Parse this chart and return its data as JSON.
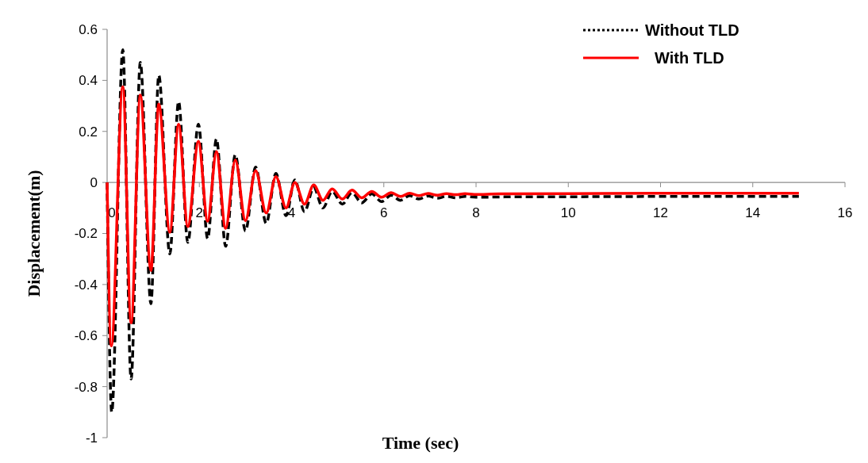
{
  "chart_data": {
    "type": "line",
    "xlabel": "Time (sec)",
    "ylabel": "Displacement(m)",
    "xlim": [
      0,
      16
    ],
    "xticks": [
      0,
      2,
      4,
      6,
      8,
      10,
      12,
      14,
      16
    ],
    "ylim": [
      -1,
      0.6
    ],
    "yticks": [
      -1,
      -0.8,
      -0.6,
      -0.4,
      -0.2,
      0,
      0.2,
      0.4,
      0.6
    ],
    "grid": false,
    "legend": "top right",
    "marker": "none",
    "series": [
      {
        "name": "Without TLD",
        "color": "#000000",
        "line_style": "dashed",
        "x": [
          0,
          0.1,
          0.34,
          0.52,
          0.72,
          0.95,
          1.12,
          1.36,
          1.55,
          1.75,
          1.98,
          2.18,
          2.37,
          2.57,
          2.78,
          3.0,
          3.22,
          3.45,
          3.66,
          3.88,
          4.07,
          4.28,
          4.48,
          4.68,
          4.88,
          5.1,
          5.31,
          5.52,
          5.74,
          5.95,
          6.16,
          6.36,
          6.56,
          6.76,
          6.96,
          7.16,
          7.36,
          7.56,
          7.76,
          8,
          9,
          10,
          12,
          15
        ],
        "values": [
          0,
          -0.9,
          0.52,
          -0.77,
          0.47,
          -0.475,
          0.42,
          -0.28,
          0.317,
          -0.235,
          0.228,
          -0.22,
          0.17,
          -0.25,
          0.108,
          -0.19,
          0.06,
          -0.16,
          0.035,
          -0.13,
          0.01,
          -0.115,
          -0.02,
          -0.1,
          -0.035,
          -0.085,
          -0.04,
          -0.08,
          -0.045,
          -0.075,
          -0.05,
          -0.07,
          -0.052,
          -0.065,
          -0.053,
          -0.062,
          -0.054,
          -0.06,
          -0.055,
          -0.058,
          -0.056,
          -0.056,
          -0.055,
          -0.055
        ]
      },
      {
        "name": "With TLD",
        "color": "#ff0000",
        "line_style": "solid",
        "x": [
          0,
          0.09,
          0.34,
          0.52,
          0.72,
          0.95,
          1.12,
          1.36,
          1.55,
          1.75,
          1.98,
          2.18,
          2.37,
          2.57,
          2.78,
          3.0,
          3.22,
          3.45,
          3.66,
          3.88,
          4.07,
          4.28,
          4.48,
          4.68,
          4.88,
          5.1,
          5.31,
          5.52,
          5.74,
          5.95,
          6.16,
          6.36,
          6.56,
          6.76,
          6.96,
          7.16,
          7.36,
          7.56,
          7.76,
          7.96,
          8.5,
          10,
          12,
          15
        ],
        "values": [
          0,
          -0.64,
          0.375,
          -0.55,
          0.343,
          -0.345,
          0.307,
          -0.195,
          0.228,
          -0.173,
          0.161,
          -0.152,
          0.121,
          -0.18,
          0.088,
          -0.15,
          0.046,
          -0.12,
          0.023,
          -0.1,
          0,
          -0.085,
          -0.01,
          -0.07,
          -0.025,
          -0.065,
          -0.03,
          -0.06,
          -0.035,
          -0.058,
          -0.04,
          -0.055,
          -0.042,
          -0.052,
          -0.043,
          -0.05,
          -0.044,
          -0.048,
          -0.044,
          -0.047,
          -0.045,
          -0.044,
          -0.042,
          -0.042
        ]
      }
    ]
  }
}
